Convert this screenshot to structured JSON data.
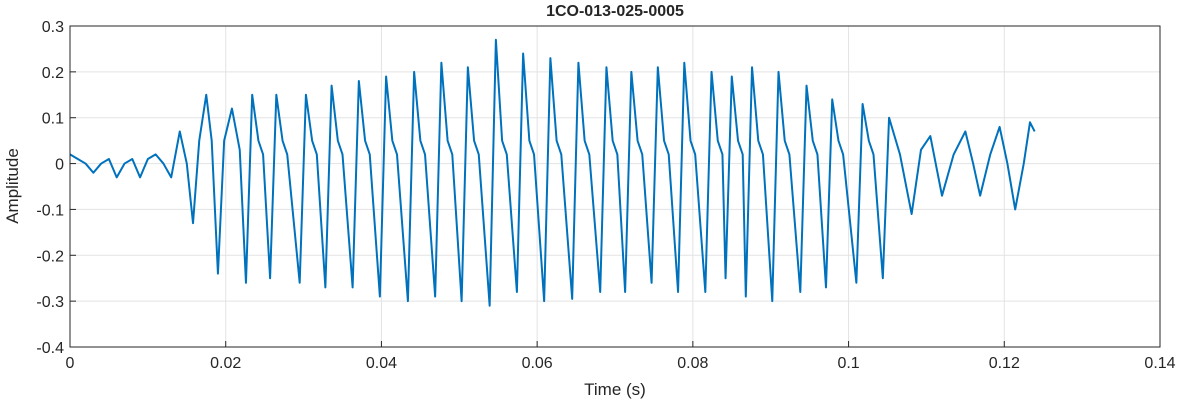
{
  "chart_data": {
    "type": "line",
    "title": "1CO-013-025-0005",
    "xlabel": "Time (s)",
    "ylabel": "Amplitude",
    "xlim": [
      0,
      0.14
    ],
    "xticks": [
      0,
      0.02,
      0.04,
      0.06,
      0.08,
      0.1,
      0.12,
      0.14
    ],
    "ylim": [
      -0.4,
      0.3
    ],
    "yticks": [
      -0.4,
      -0.3,
      -0.2,
      -0.1,
      0,
      0.1,
      0.2,
      0.3
    ],
    "grid": true,
    "x": [
      0,
      0.001,
      0.002,
      0.003,
      0.004,
      0.005,
      0.006,
      0.007,
      0.008,
      0.009,
      0.0095,
      0.01,
      0.011,
      0.012,
      0.013,
      0.0141,
      0.015,
      0.0158,
      0.0166,
      0.0175,
      0.0182,
      0.019,
      0.0198,
      0.0208,
      0.0218,
      0.0226,
      0.0234,
      0.0242,
      0.0248,
      0.0257,
      0.0265,
      0.0273,
      0.0279,
      0.0295,
      0.0303,
      0.0311,
      0.0317,
      0.0328,
      0.0336,
      0.0344,
      0.035,
      0.0363,
      0.0371,
      0.0379,
      0.0385,
      0.0398,
      0.0406,
      0.0414,
      0.042,
      0.0434,
      0.0442,
      0.045,
      0.0456,
      0.0469,
      0.0477,
      0.0485,
      0.0491,
      0.0503,
      0.0511,
      0.0519,
      0.0525,
      0.0539,
      0.0547,
      0.0555,
      0.0561,
      0.0574,
      0.0582,
      0.059,
      0.0596,
      0.0609,
      0.0617,
      0.0625,
      0.0631,
      0.0645,
      0.0653,
      0.0661,
      0.0667,
      0.0681,
      0.0689,
      0.0697,
      0.0703,
      0.0713,
      0.0721,
      0.0729,
      0.0735,
      0.0747,
      0.0755,
      0.0763,
      0.0769,
      0.0781,
      0.0789,
      0.0797,
      0.0803,
      0.0816,
      0.0824,
      0.0832,
      0.0838,
      0.0842,
      0.085,
      0.0858,
      0.0864,
      0.0868,
      0.0876,
      0.0884,
      0.089,
      0.0902,
      0.091,
      0.0918,
      0.0924,
      0.0938,
      0.0946,
      0.0954,
      0.096,
      0.0971,
      0.0979,
      0.0987,
      0.0993,
      0.101,
      0.1018,
      0.1026,
      0.1032,
      0.1044,
      0.1052,
      0.1066,
      0.1081,
      0.1093,
      0.1105,
      0.112,
      0.1135,
      0.115,
      0.116,
      0.1169,
      0.1182,
      0.1194,
      0.1204,
      0.1214,
      0.1225,
      0.1233,
      0.1239
    ],
    "series": [
      {
        "name": "Amplitude",
        "color": "#0072bd",
        "values": [
          0.02,
          0.01,
          0.0,
          -0.02,
          0.0,
          0.01,
          -0.03,
          0.0,
          0.01,
          -0.03,
          -0.01,
          0.01,
          0.02,
          0.0,
          -0.03,
          0.07,
          0.0,
          -0.13,
          0.05,
          0.15,
          0.05,
          -0.24,
          0.05,
          0.12,
          0.03,
          -0.26,
          0.15,
          0.05,
          0.02,
          -0.25,
          0.15,
          0.05,
          0.02,
          -0.26,
          0.15,
          0.05,
          0.02,
          -0.27,
          0.17,
          0.05,
          0.02,
          -0.27,
          0.18,
          0.05,
          0.02,
          -0.29,
          0.19,
          0.05,
          0.02,
          -0.3,
          0.2,
          0.05,
          0.02,
          -0.29,
          0.22,
          0.05,
          0.02,
          -0.3,
          0.21,
          0.05,
          0.02,
          -0.31,
          0.27,
          0.05,
          0.02,
          -0.28,
          0.24,
          0.05,
          0.02,
          -0.3,
          0.23,
          0.05,
          0.02,
          -0.295,
          0.22,
          0.05,
          0.02,
          -0.28,
          0.21,
          0.05,
          0.02,
          -0.28,
          0.2,
          0.05,
          0.02,
          -0.26,
          0.21,
          0.05,
          0.02,
          -0.28,
          0.22,
          0.05,
          0.02,
          -0.28,
          0.2,
          0.05,
          0.02,
          -0.25,
          0.19,
          0.05,
          0.02,
          -0.29,
          0.21,
          0.05,
          0.02,
          -0.3,
          0.2,
          0.05,
          0.02,
          -0.28,
          0.17,
          0.05,
          0.02,
          -0.27,
          0.14,
          0.05,
          0.02,
          -0.26,
          0.13,
          0.05,
          0.02,
          -0.25,
          0.1,
          0.02,
          -0.11,
          0.03,
          0.06,
          -0.07,
          0.02,
          0.07,
          0.0,
          -0.07,
          0.02,
          0.08,
          0.0,
          -0.1,
          0.0,
          0.09,
          0.07
        ]
      }
    ]
  }
}
